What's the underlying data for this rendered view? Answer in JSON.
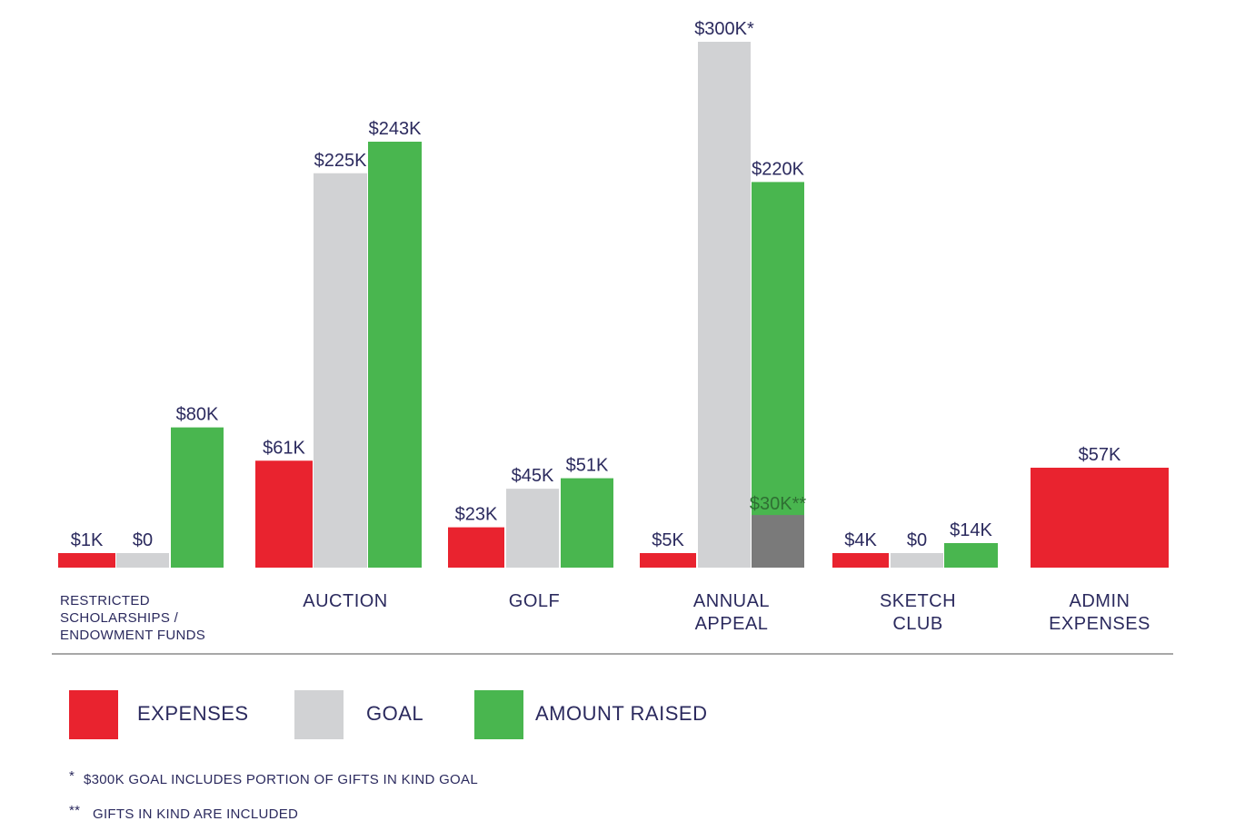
{
  "colors": {
    "expenses": "#e9232f",
    "goal": "#d1d2d4",
    "amount_raised": "#49b64f",
    "gifts_in_kind": "#7a7a7a",
    "text": "#2b2a5e",
    "divider": "#8a8a8a"
  },
  "chart_data": {
    "type": "bar",
    "title": "",
    "xlabel": "",
    "ylabel": "",
    "ylim": [
      0,
      300
    ],
    "unit": "$K",
    "legend_position": "bottom",
    "grid": false,
    "categories": [
      {
        "lines": [
          "RESTRICTED",
          "SCHOLARSHIPS /",
          "ENDOWMENT FUNDS"
        ],
        "small": true
      },
      {
        "lines": [
          "AUCTION"
        ],
        "small": false
      },
      {
        "lines": [
          "GOLF"
        ],
        "small": false
      },
      {
        "lines": [
          "ANNUAL",
          "APPEAL"
        ],
        "small": false
      },
      {
        "lines": [
          "SKETCH",
          "CLUB"
        ],
        "small": false
      },
      {
        "lines": [
          "ADMIN",
          "EXPENSES"
        ],
        "small": false
      }
    ],
    "series": [
      {
        "name": "EXPENSES",
        "values": [
          1,
          61,
          23,
          5,
          4,
          57
        ],
        "labels": [
          "$1K",
          "$61K",
          "$23K",
          "$5K",
          "$4K",
          "$57K"
        ]
      },
      {
        "name": "GOAL",
        "values": [
          0,
          225,
          45,
          300,
          0,
          null
        ],
        "labels": [
          "$0",
          "$225K",
          "$45K",
          "$300K*",
          "$0",
          null
        ]
      },
      {
        "name": "AMOUNT RAISED",
        "values": [
          80,
          243,
          51,
          220,
          14,
          null
        ],
        "labels": [
          "$80K",
          "$243K",
          "$51K",
          "$220K",
          "$14K",
          null
        ]
      }
    ],
    "sub_segments": [
      {
        "category_index": 3,
        "series": "AMOUNT RAISED",
        "value": 30,
        "label": "$30K**",
        "note": "gifts in kind"
      }
    ]
  },
  "legend": {
    "expenses_label": "EXPENSES",
    "goal_label": "GOAL",
    "amount_raised_label": "AMOUNT RAISED"
  },
  "footnotes": {
    "note1_mark": "*",
    "note1_text": "$300K GOAL INCLUDES PORTION OF GIFTS IN KIND GOAL",
    "note2_mark": "**",
    "note2_text": "GIFTS IN KIND ARE INCLUDED"
  }
}
